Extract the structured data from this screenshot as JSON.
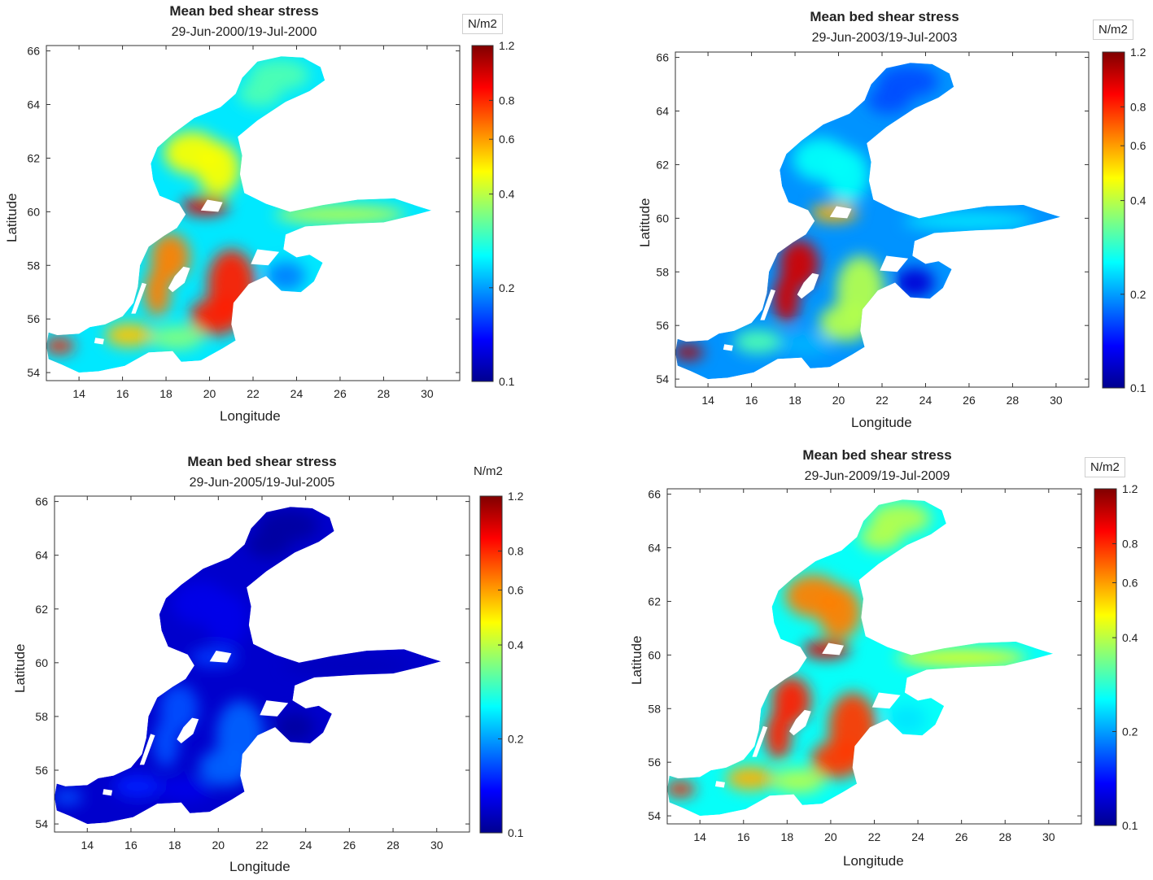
{
  "colors": {
    "colormap": [
      "#00008f",
      "#0000ff",
      "#0080ff",
      "#00ffff",
      "#80ff80",
      "#ffff00",
      "#ff8000",
      "#ff0000",
      "#800000"
    ],
    "land": "#ffffff",
    "axis": "#333333"
  },
  "chart_data": [
    {
      "type": "heatmap",
      "title": "Mean bed shear stress",
      "subtitle": "29-Jun-2000/19-Jul-2000",
      "xlabel": "Longitude",
      "ylabel": "Latitude",
      "xlim": [
        12.5,
        31.5
      ],
      "ylim": [
        53.7,
        66.2
      ],
      "xticks": [
        "14",
        "16",
        "18",
        "20",
        "22",
        "24",
        "26",
        "28",
        "30"
      ],
      "yticks": [
        "54",
        "56",
        "58",
        "60",
        "62",
        "64",
        "66"
      ],
      "colorbar": {
        "unit": "N/m2",
        "scale": "log",
        "range": [
          0.1,
          1.2
        ],
        "ticks": [
          "0.1",
          "0.2",
          "0.4",
          "0.6",
          "0.8",
          "1.2"
        ],
        "unit_boxed": true
      },
      "intensity": {
        "bothnian_bay": 0.45,
        "bothnian_sea": 0.62,
        "sea_of_aland": 0.9,
        "gulf_of_finland": 0.55,
        "gulf_of_riga": 0.25,
        "western_gotland": 0.75,
        "eastern_gotland": 0.85,
        "bornholm": 0.68,
        "southern": 0.5,
        "west_entry": 0.85
      }
    },
    {
      "type": "heatmap",
      "title": "Mean bed shear stress",
      "subtitle": "29-Jun-2003/19-Jul-2003",
      "xlabel": "Longitude",
      "ylabel": "Latitude",
      "xlim": [
        12.5,
        31.5
      ],
      "ylim": [
        53.7,
        66.2
      ],
      "xticks": [
        "14",
        "16",
        "18",
        "20",
        "22",
        "24",
        "26",
        "28",
        "30"
      ],
      "yticks": [
        "54",
        "56",
        "58",
        "60",
        "62",
        "64",
        "66"
      ],
      "colorbar": {
        "unit": "N/m2",
        "scale": "log",
        "range": [
          0.1,
          1.2
        ],
        "ticks": [
          "0.1",
          "0.2",
          "0.4",
          "0.6",
          "0.8",
          "1.2"
        ],
        "unit_boxed": true
      },
      "intensity": {
        "bothnian_bay": 0.2,
        "bothnian_sea": 0.38,
        "sea_of_aland": 0.7,
        "gulf_of_finland": 0.35,
        "gulf_of_riga": 0.08,
        "western_gotland": 0.92,
        "eastern_gotland": 0.55,
        "bornholm": 0.45,
        "southern": 0.3,
        "west_entry": 0.95
      }
    },
    {
      "type": "heatmap",
      "title": "Mean bed shear stress",
      "subtitle": "29-Jun-2005/19-Jul-2005",
      "xlabel": "Longitude",
      "ylabel": "Latitude",
      "xlim": [
        12.5,
        31.5
      ],
      "ylim": [
        53.7,
        66.2
      ],
      "xticks": [
        "14",
        "16",
        "18",
        "20",
        "22",
        "24",
        "26",
        "28",
        "30"
      ],
      "yticks": [
        "54",
        "56",
        "58",
        "60",
        "62",
        "64",
        "66"
      ],
      "colorbar": {
        "unit": "N/m2",
        "scale": "log",
        "range": [
          0.1,
          1.2
        ],
        "ticks": [
          "0.1",
          "0.2",
          "0.4",
          "0.6",
          "0.8",
          "1.2"
        ],
        "unit_boxed": false
      },
      "intensity": {
        "bothnian_bay": 0.02,
        "bothnian_sea": 0.1,
        "sea_of_aland": 0.18,
        "gulf_of_finland": 0.05,
        "gulf_of_riga": 0.02,
        "western_gotland": 0.2,
        "eastern_gotland": 0.22,
        "bornholm": 0.15,
        "southern": 0.1,
        "west_entry": 0.2
      }
    },
    {
      "type": "heatmap",
      "title": "Mean bed shear stress",
      "subtitle": "29-Jun-2009/19-Jul-2009",
      "xlabel": "Longitude",
      "ylabel": "Latitude",
      "xlim": [
        12.5,
        31.5
      ],
      "ylim": [
        53.7,
        66.2
      ],
      "xticks": [
        "14",
        "16",
        "18",
        "20",
        "22",
        "24",
        "26",
        "28",
        "30"
      ],
      "yticks": [
        "54",
        "56",
        "58",
        "60",
        "62",
        "64",
        "66"
      ],
      "colorbar": {
        "unit": "N/m2",
        "scale": "log",
        "range": [
          0.1,
          1.2
        ],
        "ticks": [
          "0.1",
          "0.2",
          "0.4",
          "0.6",
          "0.8",
          "1.2"
        ],
        "unit_boxed": true
      },
      "intensity": {
        "bothnian_bay": 0.55,
        "bothnian_sea": 0.75,
        "sea_of_aland": 0.9,
        "gulf_of_finland": 0.6,
        "gulf_of_riga": 0.35,
        "western_gotland": 0.85,
        "eastern_gotland": 0.82,
        "bornholm": 0.7,
        "southern": 0.55,
        "west_entry": 0.85
      }
    }
  ]
}
